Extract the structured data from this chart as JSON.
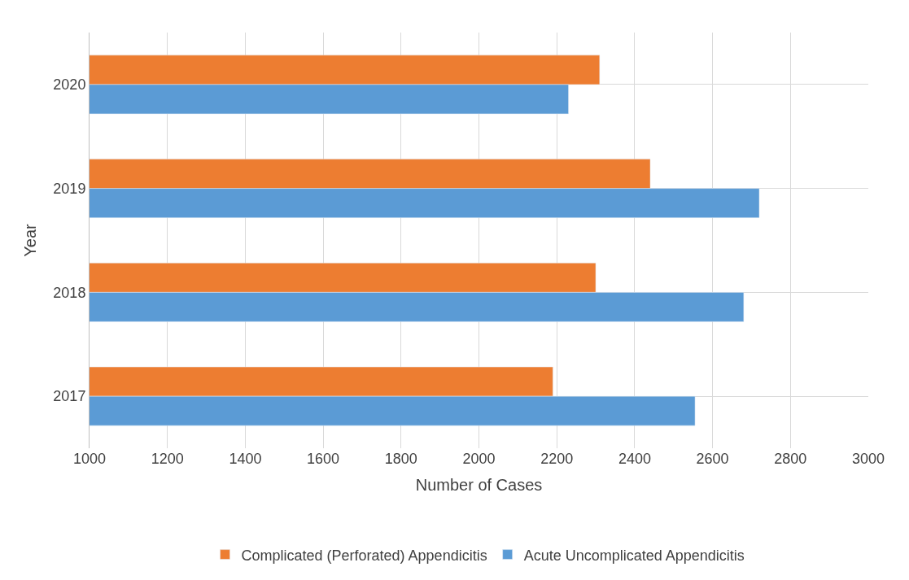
{
  "chart_data": {
    "type": "bar",
    "orientation": "horizontal",
    "xlabel": "Number of Cases",
    "ylabel": "Year",
    "categories": [
      "2020",
      "2019",
      "2018",
      "2017"
    ],
    "series": [
      {
        "name": "Complicated (Perforated) Appendicitis",
        "color": "#ed7d31",
        "values": [
          2310,
          2440,
          2300,
          2190
        ]
      },
      {
        "name": "Acute Uncomplicated Appendicitis",
        "color": "#5b9bd5",
        "values": [
          2230,
          2720,
          2680,
          2555
        ]
      }
    ],
    "xlim": [
      1000,
      3000
    ],
    "xticks": [
      1000,
      1200,
      1400,
      1600,
      1800,
      2000,
      2200,
      2400,
      2600,
      2800,
      3000
    ],
    "grid": true,
    "legend": "bottom"
  }
}
